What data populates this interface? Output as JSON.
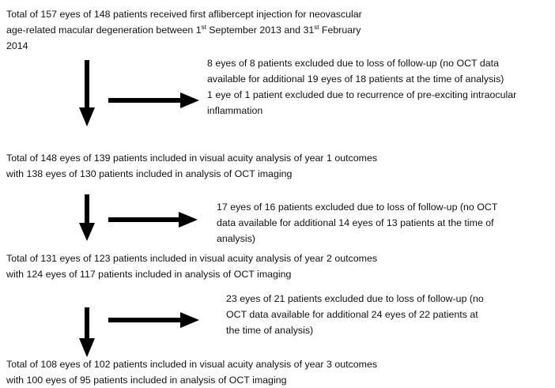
{
  "nodes": [
    {
      "lines": [
        [
          "Total of 157 eyes of 148 patients received first aflibercept injection for neovascular"
        ],
        [
          "age-related macular degeneration between 1",
          "st",
          " September 2013 and 31",
          "st",
          " February"
        ],
        [
          "2014"
        ]
      ]
    },
    {
      "lines": [
        [
          "8 eyes of 8 patients excluded due to loss of follow-up (no OCT data"
        ],
        [
          "available for additional 19 eyes of 18 patients at the time of analysis)"
        ],
        [
          "1 eye of 1 patient excluded due to recurrence of pre-exciting intraocular"
        ],
        [
          "inflammation"
        ]
      ]
    },
    {
      "lines": [
        [
          "Total of 148 eyes of 139 patients included in visual acuity analysis of year 1 outcomes"
        ],
        [
          "with 138 eyes of 130 patients included in analysis of OCT imaging"
        ]
      ]
    },
    {
      "lines": [
        [
          "17 eyes of 16 patients excluded due to loss of follow-up (no OCT"
        ],
        [
          "data available for additional 14 eyes of 13 patients at the time of"
        ],
        [
          "analysis)"
        ]
      ]
    },
    {
      "lines": [
        [
          "Total of 131 eyes of 123 patients included in visual acuity analysis of year 2 outcomes"
        ],
        [
          "with 124 eyes of 117 patients included in analysis of OCT imaging"
        ]
      ]
    },
    {
      "lines": [
        [
          "23 eyes of 21 patients excluded due to loss of follow-up (no"
        ],
        [
          "OCT data available for additional 24 eyes of 22 patients at"
        ],
        [
          "the time of analysis)"
        ]
      ]
    },
    {
      "lines": [
        [
          "Total of 108 eyes of 102 patients included in visual acuity analysis of year 3 outcomes"
        ],
        [
          "with 100 eyes of 95 patients included in analysis of OCT imaging"
        ]
      ]
    }
  ]
}
